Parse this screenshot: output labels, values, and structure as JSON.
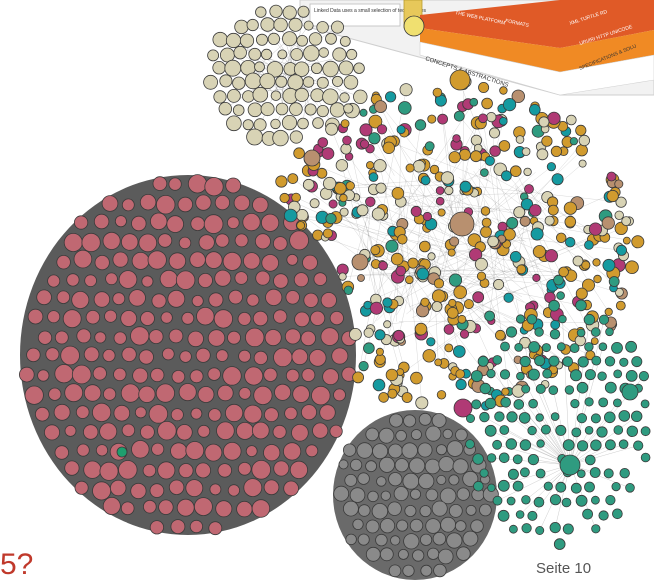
{
  "slide": {
    "question_fragment": "5?",
    "page_label": "Seite 10"
  },
  "inset": {
    "caption": "Linked Data uses a small selection of technologies",
    "labels": [
      "CONCEPTS & ABSTRACTIONS",
      "THE WEB PLATFORM",
      "FORMATS",
      "XML TURTLE RD",
      "URI/IRI HTTP UNICODE",
      "SPECIFICATIONS & SOLU"
    ],
    "colors": [
      "#e0561f",
      "#f39c12",
      "#27ae60",
      "#2e86de",
      "#c0392b",
      "#8e44ad"
    ]
  },
  "graph": {
    "clusters": [
      {
        "name": "large-pink-cluster",
        "color": "#c06872"
      },
      {
        "name": "grey-cluster-bottom",
        "color": "#8a8a8a"
      },
      {
        "name": "beige-cluster-top",
        "color": "#d8d3b5"
      },
      {
        "name": "orange-nodes",
        "color": "#d19b2e"
      },
      {
        "name": "teal-nodes",
        "color": "#2f9b80"
      },
      {
        "name": "magenta-nodes",
        "color": "#b03a75"
      },
      {
        "name": "cyan-nodes",
        "color": "#159aa0"
      },
      {
        "name": "tan-nodes",
        "color": "#b8906f"
      }
    ]
  }
}
